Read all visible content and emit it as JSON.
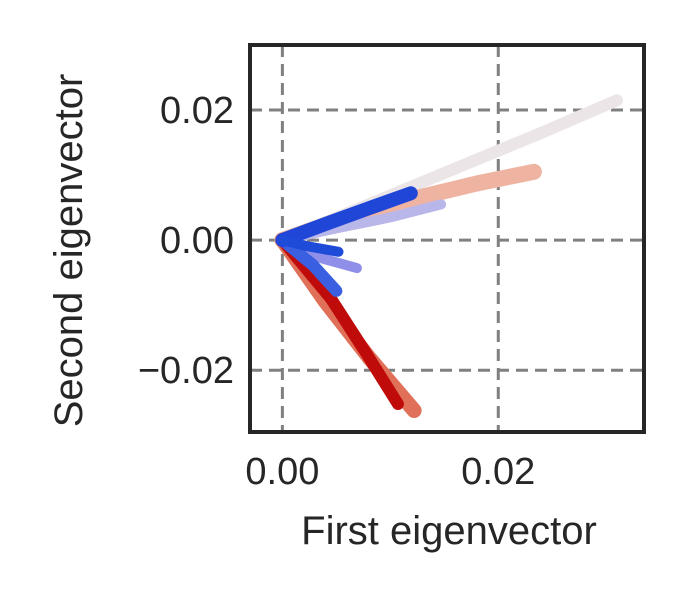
{
  "chart_data": {
    "type": "line",
    "title": "",
    "xlabel": "First eigenvector",
    "ylabel": "Second eigenvector",
    "xlim": [
      -0.003,
      0.0335
    ],
    "ylim": [
      -0.0295,
      0.03
    ],
    "xticks": [
      0.0,
      0.02
    ],
    "xtick_labels": [
      "0.00",
      "0.02"
    ],
    "yticks": [
      -0.02,
      0.0,
      0.02
    ],
    "ytick_labels": [
      "−0.02",
      "0.00",
      "0.02"
    ],
    "grid": true,
    "grid_style": "dashed",
    "legend": "none",
    "series": [
      {
        "color": "#ece5e8",
        "width": 12,
        "x": [
          0.0,
          0.008,
          0.016,
          0.024,
          0.031
        ],
        "y": [
          0.0,
          0.0055,
          0.011,
          0.0165,
          0.0215
        ]
      },
      {
        "color": "#efb3a2",
        "width": 16,
        "x": [
          0.0,
          0.006,
          0.012,
          0.018,
          0.0233
        ],
        "y": [
          0.0,
          0.0035,
          0.0063,
          0.0087,
          0.0105
        ]
      },
      {
        "color": "#b9b6ea",
        "width": 10,
        "x": [
          0.0,
          0.005,
          0.01,
          0.0147
        ],
        "y": [
          0.0,
          0.0018,
          0.0035,
          0.0055
        ]
      },
      {
        "color": "#8f8ee8",
        "width": 10,
        "x": [
          0.0,
          0.003,
          0.0069
        ],
        "y": [
          0.0,
          -0.0025,
          -0.0043
        ]
      },
      {
        "color": "#e07058",
        "width": 15,
        "x": [
          0.0,
          0.004,
          0.008,
          0.0122
        ],
        "y": [
          0.0,
          -0.0095,
          -0.018,
          -0.0262
        ]
      },
      {
        "color": "#c00b0b",
        "width": 12,
        "x": [
          0.0,
          0.0045,
          0.0078,
          0.0107
        ],
        "y": [
          0.0,
          -0.009,
          -0.0175,
          -0.0252
        ]
      },
      {
        "color": "#3a5fe0",
        "width": 12,
        "x": [
          0.0,
          0.0028,
          0.005
        ],
        "y": [
          0.0,
          -0.0038,
          -0.0078
        ]
      },
      {
        "color": "#2046d8",
        "width": 14,
        "x": [
          0.0,
          0.004,
          0.008,
          0.0119
        ],
        "y": [
          0.0,
          0.0025,
          0.0049,
          0.0072
        ]
      },
      {
        "color": "#1f4bd9",
        "width": 10,
        "x": [
          0.0,
          0.0022,
          0.0052
        ],
        "y": [
          0.0,
          -0.0009,
          -0.0018
        ]
      }
    ]
  }
}
